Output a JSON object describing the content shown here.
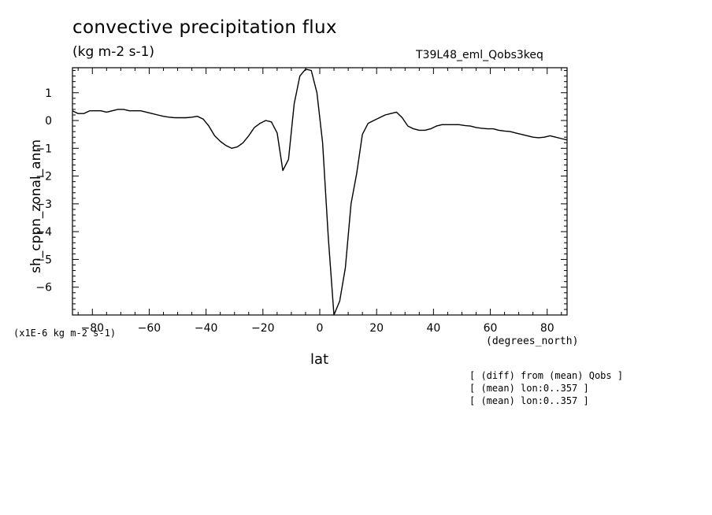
{
  "chart_data": {
    "type": "line",
    "title": "convective precipitation flux",
    "units": "(kg m-2 s-1)",
    "run_label": "T39L48_eml_Qobs3keq",
    "ylabel": "sh_cppn_zonal_anm",
    "xlabel": "lat",
    "scale_note": "(x1E-6 kg m-2 s-1)",
    "x_units": "(degrees_north)",
    "xlim": [
      -87,
      87
    ],
    "ylim": [
      -7,
      1.9
    ],
    "xticks": [
      -80,
      -60,
      -40,
      -20,
      0,
      20,
      40,
      60,
      80
    ],
    "yticks": [
      1,
      0,
      -1,
      -2,
      -3,
      -4,
      -5,
      -6
    ],
    "grid": false,
    "x": [
      -87,
      -85,
      -83,
      -81,
      -79,
      -77,
      -75,
      -73,
      -71,
      -69,
      -67,
      -65,
      -63,
      -61,
      -59,
      -57,
      -55,
      -53,
      -51,
      -49,
      -47,
      -45,
      -43,
      -41,
      -39,
      -37,
      -35,
      -33,
      -31,
      -29,
      -27,
      -25,
      -23,
      -21,
      -19,
      -17,
      -15,
      -13,
      -11,
      -9,
      -7,
      -5,
      -3,
      -1,
      1,
      3,
      5,
      7,
      9,
      11,
      13,
      15,
      17,
      19,
      21,
      23,
      25,
      27,
      29,
      31,
      33,
      35,
      37,
      39,
      41,
      43,
      45,
      47,
      49,
      51,
      53,
      55,
      57,
      59,
      61,
      63,
      65,
      67,
      69,
      71,
      73,
      75,
      77,
      79,
      81,
      83,
      85,
      87
    ],
    "y": [
      0.35,
      0.25,
      0.25,
      0.35,
      0.35,
      0.35,
      0.3,
      0.35,
      0.4,
      0.4,
      0.35,
      0.35,
      0.35,
      0.3,
      0.25,
      0.2,
      0.15,
      0.12,
      0.1,
      0.1,
      0.1,
      0.12,
      0.15,
      0.05,
      -0.2,
      -0.55,
      -0.75,
      -0.9,
      -1.0,
      -0.95,
      -0.8,
      -0.55,
      -0.25,
      -0.1,
      0.0,
      -0.05,
      -0.45,
      -1.8,
      -1.4,
      0.6,
      1.6,
      1.85,
      1.8,
      1.0,
      -0.8,
      -4.2,
      -7.0,
      -6.5,
      -5.3,
      -3.0,
      -1.9,
      -0.5,
      -0.1,
      0.0,
      0.1,
      0.2,
      0.25,
      0.3,
      0.1,
      -0.2,
      -0.3,
      -0.35,
      -0.35,
      -0.3,
      -0.2,
      -0.15,
      -0.15,
      -0.15,
      -0.15,
      -0.18,
      -0.2,
      -0.25,
      -0.28,
      -0.3,
      -0.3,
      -0.35,
      -0.38,
      -0.4,
      -0.45,
      -0.5,
      -0.55,
      -0.6,
      -0.62,
      -0.6,
      -0.55,
      -0.6,
      -0.65,
      -0.7
    ],
    "color": "#000000"
  },
  "annotations": [
    "[ (diff) from (mean) Qobs ]",
    "[ (mean) lon:0..357 ]",
    "[ (mean) lon:0..357 ]"
  ]
}
